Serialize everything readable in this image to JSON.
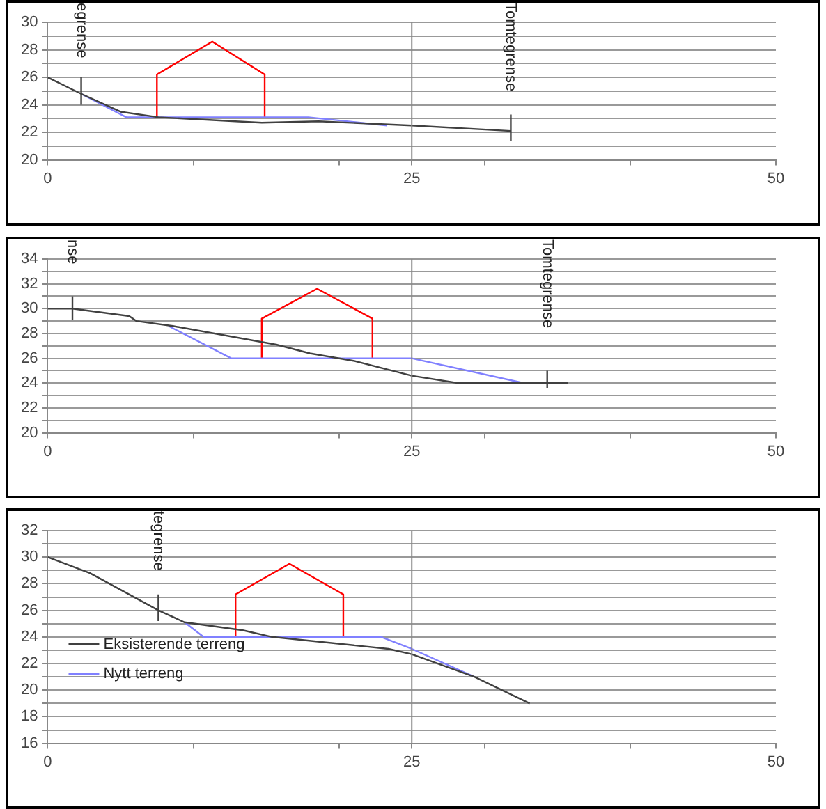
{
  "chart_data": [
    {
      "type": "line",
      "xlim": [
        0,
        50
      ],
      "ylim": [
        20,
        30
      ],
      "xticks": [
        0,
        {
          "value": 10,
          "label": null
        },
        {
          "value": 20,
          "label": null
        },
        25,
        {
          "value": 30,
          "label": null
        },
        {
          "value": 40,
          "label": null
        },
        50
      ],
      "yticks": [
        20,
        {
          "value": 21,
          "label": null
        },
        22,
        {
          "value": 23,
          "label": null
        },
        24,
        {
          "value": 25,
          "label": null
        },
        26,
        {
          "value": 27,
          "label": null
        },
        28,
        {
          "value": 29,
          "label": null
        },
        30
      ],
      "grid": "y",
      "marker": "none",
      "line_style": "solid",
      "ref_lines": [
        {
          "axis": "x",
          "value": 25,
          "color": "#888888"
        }
      ],
      "series": [
        {
          "color": "#404040",
          "x": [
            0,
            2.3,
            5,
            7.6,
            14.7,
            18.6,
            25,
            31.8
          ],
          "values": [
            26,
            24.8,
            23.5,
            23.1,
            22.7,
            22.8,
            22.5,
            22.1
          ]
        },
        {
          "color": "#8080ff",
          "x": [
            2.3,
            5.4,
            17.9,
            23.3
          ],
          "values": [
            24.8,
            23.1,
            23.1,
            22.5
          ]
        },
        {
          "color": "#ff0000",
          "x": [
            7.5,
            7.5,
            11.3,
            14.9,
            14.9
          ],
          "values": [
            23.1,
            26.2,
            28.6,
            26.2,
            23.1
          ]
        },
        {
          "color": "#404040",
          "x": [
            2.3,
            2.3
          ],
          "values": [
            24,
            26
          ]
        },
        {
          "color": "#404040",
          "x": [
            31.8,
            31.8
          ],
          "values": [
            21.4,
            23.3
          ]
        }
      ],
      "annotations": [
        "egrense",
        "Tomtegrense"
      ]
    },
    {
      "type": "line",
      "xlim": [
        0,
        50
      ],
      "ylim": [
        20,
        34
      ],
      "xticks": [
        0,
        {
          "value": 10,
          "label": null
        },
        {
          "value": 20,
          "label": null
        },
        25,
        {
          "value": 30,
          "label": null
        },
        {
          "value": 40,
          "label": null
        },
        50
      ],
      "yticks": [
        20,
        {
          "value": 21,
          "label": null
        },
        22,
        {
          "value": 23,
          "label": null
        },
        24,
        {
          "value": 25,
          "label": null
        },
        26,
        {
          "value": 27,
          "label": null
        },
        28,
        {
          "value": 29,
          "label": null
        },
        30,
        {
          "value": 31,
          "label": null
        },
        32,
        {
          "value": 33,
          "label": null
        },
        34
      ],
      "grid": "y",
      "marker": "none",
      "line_style": "solid",
      "ref_lines": [
        {
          "axis": "x",
          "value": 25,
          "color": "#888888"
        }
      ],
      "series": [
        {
          "color": "#404040",
          "x": [
            0,
            1.7,
            5.6,
            6.1,
            8.6,
            15.7,
            18,
            21,
            25,
            28.2,
            35.7
          ],
          "values": [
            30,
            30,
            29.4,
            29,
            28.6,
            27.1,
            26.4,
            25.8,
            24.6,
            24,
            24
          ]
        },
        {
          "color": "#8080ff",
          "x": [
            8.3,
            12.6,
            25,
            32.7
          ],
          "values": [
            28.6,
            26,
            26,
            24
          ]
        },
        {
          "color": "#ff0000",
          "x": [
            14.7,
            14.7,
            18.5,
            22.3,
            22.3
          ],
          "values": [
            26,
            29.2,
            31.6,
            29.2,
            26
          ]
        },
        {
          "color": "#404040",
          "x": [
            1.7,
            1.7
          ],
          "values": [
            29.1,
            31
          ]
        },
        {
          "color": "#404040",
          "x": [
            34.3,
            34.3
          ],
          "values": [
            23.6,
            25
          ]
        }
      ],
      "annotations": [
        "nse",
        "Tomtegrense"
      ]
    },
    {
      "type": "line",
      "xlim": [
        0,
        50
      ],
      "ylim": [
        16,
        32
      ],
      "xticks": [
        0,
        {
          "value": 10,
          "label": null
        },
        {
          "value": 20,
          "label": null
        },
        25,
        {
          "value": 30,
          "label": null
        },
        {
          "value": 40,
          "label": null
        },
        50
      ],
      "yticks": [
        16,
        {
          "value": 17,
          "label": null
        },
        18,
        {
          "value": 19,
          "label": null
        },
        20,
        {
          "value": 21,
          "label": null
        },
        22,
        {
          "value": 23,
          "label": null
        },
        24,
        {
          "value": 25,
          "label": null
        },
        26,
        {
          "value": 27,
          "label": null
        },
        28,
        {
          "value": 29,
          "label": null
        },
        30,
        {
          "value": 31,
          "label": null
        },
        32
      ],
      "grid": "y",
      "marker": "none",
      "line_style": "solid",
      "legend": "bottom left",
      "ref_lines": [
        {
          "axis": "x",
          "value": 25,
          "color": "#888888"
        }
      ],
      "series": [
        {
          "name": "Eksisterende terreng",
          "color": "#404040",
          "x": [
            0,
            2.9,
            7.6,
            9.4,
            13.4,
            15.4,
            23.4,
            25,
            29.3,
            33.1
          ],
          "values": [
            30,
            28.8,
            26,
            25.1,
            24.5,
            24,
            23.1,
            22.7,
            21,
            19
          ]
        },
        {
          "name": "Nytt terreng",
          "color": "#8080ff",
          "x": [
            9.4,
            10.7,
            22.9,
            25,
            29.3
          ],
          "values": [
            25.1,
            24,
            24,
            23.1,
            21
          ]
        },
        {
          "color": "#ff0000",
          "x": [
            12.9,
            12.9,
            16.6,
            20.3,
            20.3
          ],
          "values": [
            24,
            27.2,
            29.5,
            27.2,
            24
          ]
        },
        {
          "color": "#404040",
          "x": [
            7.6,
            7.6
          ],
          "values": [
            25.2,
            27.2
          ]
        }
      ],
      "annotations": [
        "tegrense"
      ]
    }
  ]
}
